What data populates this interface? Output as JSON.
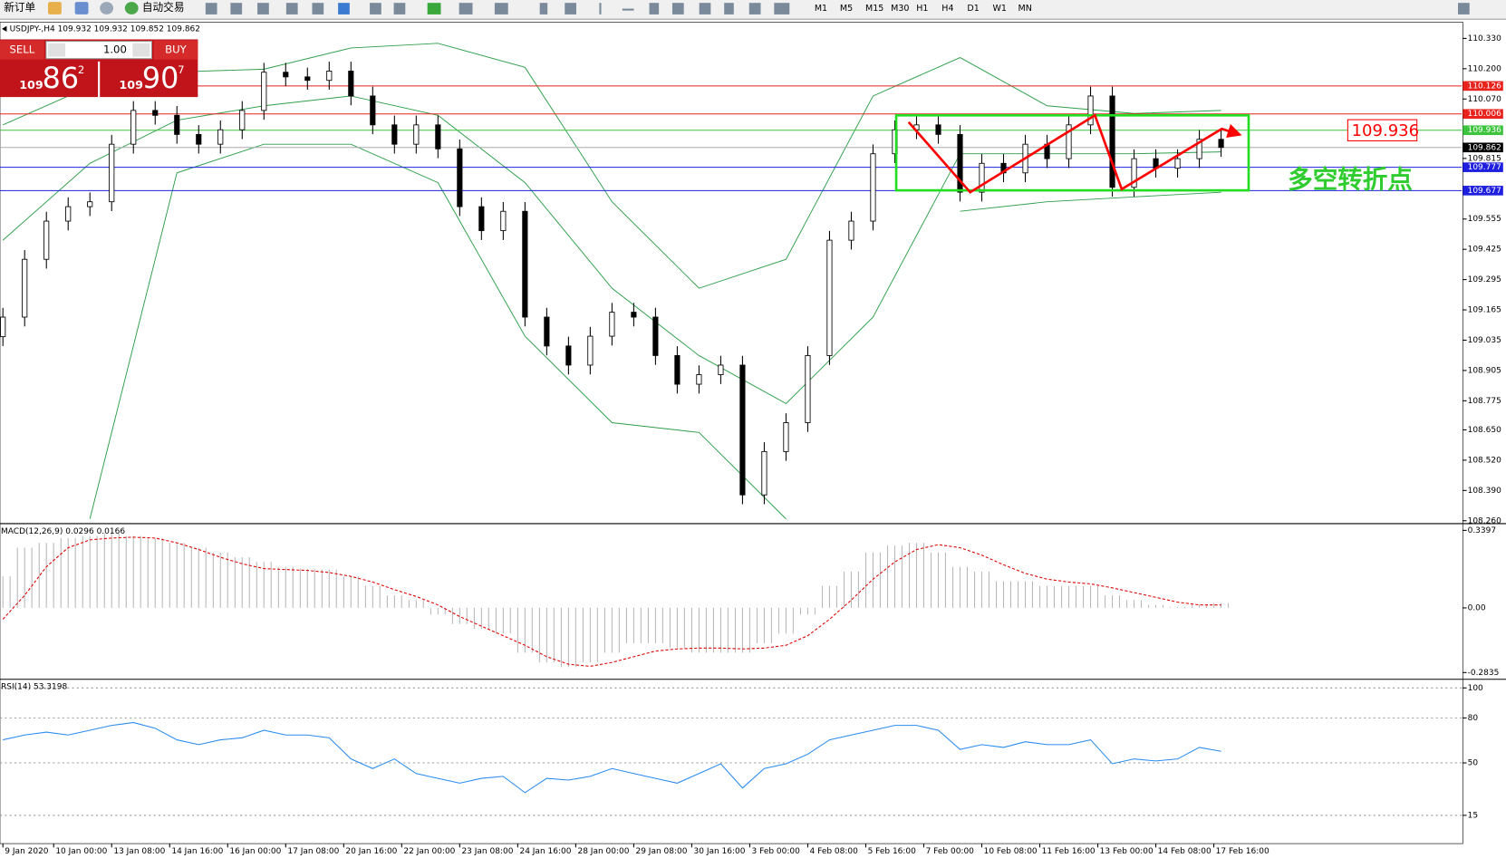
{
  "toolbar": {
    "new_order": "新订单",
    "auto_trading": "自动交易",
    "timeframes": [
      "M1",
      "M5",
      "M15",
      "M30",
      "H1",
      "H4",
      "D1",
      "W1",
      "MN"
    ]
  },
  "trade_panel": {
    "sell_label": "SELL",
    "lot": "1.00",
    "buy_label": "BUY",
    "sell_price": {
      "big": "109",
      "main": "86",
      "small": "2"
    },
    "buy_price": {
      "big": "109",
      "main": "90",
      "small": "7"
    }
  },
  "chart_data": [
    {
      "type": "candlestick",
      "title": "USDJPY-,H4 109.932 109.932 109.852 109.862",
      "xlim": [
        -0.4,
        201.2
      ],
      "ylim": [
        108.26,
        110.33
      ],
      "x": [
        0,
        3,
        6,
        9,
        12,
        15,
        18,
        21,
        24,
        27,
        30,
        33,
        36,
        39,
        42,
        45,
        48,
        51,
        54,
        57,
        60,
        63,
        66,
        69,
        72,
        75,
        78,
        81,
        84,
        87,
        90,
        93,
        96,
        99,
        102,
        105,
        108,
        111,
        114,
        117,
        120,
        123,
        126,
        129,
        132,
        135,
        138,
        141,
        144,
        147,
        150,
        153,
        156,
        159,
        162,
        165,
        168
      ],
      "open": [
        109.05,
        109.134,
        109.382,
        109.546,
        109.608,
        109.629,
        109.876,
        110.021,
        110.0,
        109.918,
        109.876,
        109.938,
        110.021,
        110.185,
        110.165,
        110.15,
        110.19,
        110.083,
        109.959,
        109.876,
        109.959,
        109.856,
        109.608,
        109.505,
        109.588,
        109.134,
        109.01,
        108.928,
        109.052,
        109.155,
        109.134,
        108.969,
        108.846,
        108.887,
        108.928,
        108.371,
        108.557,
        108.681,
        108.969,
        109.464,
        109.546,
        109.835,
        109.938,
        109.959,
        109.918,
        109.67,
        109.794,
        109.753,
        109.876,
        109.814,
        109.959,
        110.083,
        109.691,
        109.814,
        109.773,
        109.814,
        109.897
      ],
      "high": [
        109.174,
        109.422,
        109.586,
        109.648,
        109.669,
        109.916,
        110.061,
        110.061,
        110.04,
        109.958,
        109.978,
        110.061,
        110.225,
        110.225,
        110.205,
        110.23,
        110.23,
        110.123,
        109.999,
        109.999,
        109.999,
        109.896,
        109.648,
        109.628,
        109.628,
        109.174,
        109.05,
        109.092,
        109.195,
        109.195,
        109.174,
        109.009,
        108.927,
        108.968,
        108.968,
        108.597,
        108.721,
        109.009,
        109.504,
        109.586,
        109.875,
        109.978,
        109.999,
        109.999,
        109.958,
        109.834,
        109.834,
        109.916,
        109.916,
        109.999,
        110.123,
        110.123,
        109.854,
        109.854,
        109.854,
        109.937,
        109.937
      ],
      "low": [
        109.01,
        109.094,
        109.342,
        109.506,
        109.568,
        109.589,
        109.836,
        109.96,
        109.878,
        109.836,
        109.836,
        109.898,
        109.981,
        110.125,
        110.11,
        110.11,
        110.043,
        109.919,
        109.836,
        109.836,
        109.816,
        109.568,
        109.465,
        109.465,
        109.094,
        108.97,
        108.888,
        108.888,
        109.012,
        109.094,
        108.929,
        108.806,
        108.806,
        108.847,
        108.331,
        108.331,
        108.517,
        108.641,
        108.929,
        109.424,
        109.506,
        109.795,
        109.898,
        109.878,
        109.63,
        109.63,
        109.713,
        109.713,
        109.774,
        109.774,
        109.919,
        109.651,
        109.651,
        109.733,
        109.733,
        109.774,
        109.822
      ],
      "close": [
        109.134,
        109.382,
        109.546,
        109.608,
        109.629,
        109.876,
        110.021,
        110.0,
        109.918,
        109.876,
        109.938,
        110.021,
        110.185,
        110.165,
        110.15,
        110.19,
        110.083,
        109.959,
        109.876,
        109.959,
        109.856,
        109.608,
        109.505,
        109.588,
        109.134,
        109.01,
        108.928,
        109.052,
        109.155,
        109.134,
        108.969,
        108.846,
        108.887,
        108.928,
        108.371,
        108.557,
        108.681,
        108.969,
        109.464,
        109.546,
        109.835,
        109.938,
        109.959,
        109.918,
        109.67,
        109.794,
        109.753,
        109.876,
        109.814,
        109.959,
        110.083,
        109.691,
        109.814,
        109.773,
        109.814,
        109.897,
        109.862
      ],
      "bands": [
        {
          "color": "#2e9e4a",
          "x": [
            0,
            12,
            24,
            36,
            48,
            60,
            72,
            84,
            96,
            108,
            120,
            132,
            144,
            156,
            168
          ],
          "values": [
            109.959,
            110.124,
            110.186,
            110.198,
            110.289,
            110.309,
            110.206,
            109.629,
            109.258,
            109.382,
            110.083,
            110.248,
            110.041,
            110.008,
            110.021
          ]
        },
        {
          "color": "#2e9e4a",
          "x": [
            0,
            12,
            24,
            36,
            48,
            60,
            72,
            84,
            96,
            108,
            120,
            132,
            144,
            156,
            168
          ],
          "values": [
            109.464,
            109.794,
            109.979,
            110.041,
            110.083,
            110.0,
            109.711,
            109.258,
            108.969,
            108.763,
            109.134,
            109.835,
            109.835,
            109.835,
            109.843
          ]
        },
        {
          "color": "#2e9e4a",
          "x": [
            0,
            12,
            24,
            36,
            48,
            60,
            72,
            84,
            96,
            108,
            120,
            132,
            144,
            156,
            168
          ],
          "values": [
            null,
            108.268,
            109.753,
            109.876,
            109.876,
            109.711,
            109.052,
            108.681,
            108.639,
            108.268,
            null,
            109.588,
            109.629,
            109.65,
            109.67
          ]
        }
      ],
      "yticks": [
        {
          "value": 110.33,
          "label": "110.330"
        },
        {
          "value": 110.2,
          "label": "110.200"
        },
        {
          "value": 110.07,
          "label": "110.070"
        },
        {
          "value": 109.815,
          "label": "109.815"
        },
        {
          "value": 109.555,
          "label": "109.555"
        },
        {
          "value": 109.425,
          "label": "109.425"
        },
        {
          "value": 109.295,
          "label": "109.295"
        },
        {
          "value": 109.165,
          "label": "109.165"
        },
        {
          "value": 109.035,
          "label": "109.035"
        },
        {
          "value": 108.905,
          "label": "108.905"
        },
        {
          "value": 108.775,
          "label": "108.775"
        },
        {
          "value": 108.65,
          "label": "108.650"
        },
        {
          "value": 108.52,
          "label": "108.520"
        },
        {
          "value": 108.39,
          "label": "108.390"
        },
        {
          "value": 108.26,
          "label": "108.260"
        }
      ],
      "levels": [
        {
          "value": 110.126,
          "label": "110.126",
          "color": "#e8231e"
        },
        {
          "value": 110.006,
          "label": "110.006",
          "color": "#e8231e"
        },
        {
          "value": 109.936,
          "label": "109.936",
          "color": "#3cc43c"
        },
        {
          "value": 109.862,
          "label": "109.862",
          "color": "#000000"
        },
        {
          "value": 109.777,
          "label": "109.777",
          "color": "#1f1fe0"
        },
        {
          "value": 109.677,
          "label": "109.677",
          "color": "#1f1fe0"
        }
      ],
      "box": {
        "x0": 123.2,
        "x1": 171.8,
        "y0": 109.678,
        "y1": 110.0,
        "color": "#22dd22"
      },
      "trend": {
        "x": [
          124.9,
          133.4,
          150.6,
          154.3,
          168.1,
          170.5
        ],
        "y": [
          109.971,
          109.67,
          110.0,
          109.683,
          109.942,
          109.918
        ],
        "color": "#ff0000"
      },
      "annotation": {
        "text": "多空转折点",
        "x": 177.2,
        "y": 109.72,
        "color": "#2ecc2e"
      },
      "price_label": {
        "text": "109.936",
        "x": 186,
        "y": 109.936,
        "color": "#ff0000"
      }
    },
    {
      "type": "macd",
      "title": "MACD(12,26,9) 0.0296 0.0166",
      "xlim": [
        -0.4,
        201.2
      ],
      "ylim": [
        -0.2835,
        0.3397
      ],
      "x": [
        0,
        3,
        6,
        9,
        12,
        15,
        18,
        21,
        24,
        27,
        30,
        33,
        36,
        39,
        42,
        45,
        48,
        51,
        54,
        57,
        60,
        63,
        66,
        69,
        72,
        75,
        78,
        81,
        84,
        87,
        90,
        93,
        96,
        99,
        102,
        105,
        108,
        111,
        114,
        117,
        120,
        123,
        126,
        129,
        132,
        135,
        138,
        141,
        144,
        147,
        150,
        153,
        156,
        159,
        162,
        165,
        168
      ],
      "histogram": {
        "color": "#b8b8b8",
        "values": [
          0.138,
          0.264,
          0.285,
          0.306,
          0.315,
          0.327,
          0.315,
          0.306,
          0.285,
          0.264,
          0.243,
          0.222,
          0.201,
          0.18,
          0.172,
          0.168,
          0.138,
          0.096,
          0.055,
          0.034,
          -0.029,
          -0.071,
          -0.092,
          -0.113,
          -0.197,
          -0.239,
          -0.26,
          -0.239,
          -0.197,
          -0.155,
          -0.155,
          -0.176,
          -0.197,
          -0.197,
          -0.197,
          -0.155,
          -0.113,
          -0.029,
          0.096,
          0.159,
          0.243,
          0.273,
          0.285,
          0.243,
          0.18,
          0.159,
          0.117,
          0.117,
          0.096,
          0.096,
          0.096,
          0.055,
          0.034,
          0.013,
          0.004,
          0.013,
          0.021
        ]
      },
      "signal": {
        "color": "#e00000",
        "values": [
          -0.05,
          0.055,
          0.18,
          0.264,
          0.298,
          0.306,
          0.31,
          0.306,
          0.285,
          0.256,
          0.222,
          0.193,
          0.172,
          0.168,
          0.164,
          0.155,
          0.138,
          0.113,
          0.08,
          0.05,
          0.013,
          -0.038,
          -0.08,
          -0.122,
          -0.164,
          -0.214,
          -0.247,
          -0.256,
          -0.239,
          -0.214,
          -0.189,
          -0.18,
          -0.176,
          -0.176,
          -0.18,
          -0.176,
          -0.164,
          -0.122,
          -0.05,
          0.034,
          0.126,
          0.201,
          0.256,
          0.277,
          0.264,
          0.231,
          0.189,
          0.151,
          0.126,
          0.113,
          0.105,
          0.088,
          0.067,
          0.046,
          0.025,
          0.013,
          0.013
        ]
      },
      "yticks": [
        0.3397,
        {
          "value": 0,
          "label": "0.00"
        },
        -0.2835
      ]
    },
    {
      "type": "line",
      "title": "RSI(14) 53.3198",
      "xlim": [
        -0.4,
        201.2
      ],
      "ylim": [
        0,
        100
      ],
      "color": "#2a8cf0",
      "grid": true,
      "x": [
        0,
        3,
        6,
        9,
        12,
        15,
        18,
        21,
        24,
        27,
        30,
        33,
        36,
        39,
        42,
        45,
        48,
        51,
        54,
        57,
        60,
        63,
        66,
        69,
        72,
        75,
        78,
        81,
        84,
        87,
        90,
        93,
        96,
        99,
        102,
        105,
        108,
        111,
        114,
        117,
        120,
        123,
        126,
        129,
        132,
        135,
        138,
        141,
        144,
        147,
        150,
        153,
        156,
        159,
        162,
        165,
        168
      ],
      "values": [
        65.4,
        68.6,
        70.5,
        68.6,
        71.8,
        75.0,
        76.9,
        73.1,
        65.4,
        62.2,
        65.4,
        66.7,
        71.8,
        68.6,
        68.6,
        66.7,
        52.6,
        46.2,
        52.6,
        42.9,
        39.7,
        36.5,
        39.7,
        41.0,
        30.1,
        39.7,
        38.5,
        41.0,
        46.2,
        42.9,
        39.7,
        36.5,
        42.9,
        49.4,
        33.3,
        46.2,
        49.4,
        55.8,
        65.4,
        68.6,
        71.8,
        75.0,
        75.0,
        71.8,
        59.0,
        62.2,
        60.3,
        64.1,
        62.2,
        62.2,
        65.4,
        49.4,
        52.6,
        51.3,
        52.6,
        60.3,
        57.7
      ],
      "yticks": [
        100,
        80,
        50,
        15
      ],
      "xticks": [
        {
          "value": 0,
          "label": "9 Jan 2020"
        },
        {
          "value": 7,
          "label": "10 Jan 00:00"
        },
        {
          "value": 15,
          "label": "13 Jan 08:00"
        },
        {
          "value": 23,
          "label": "14 Jan 16:00"
        },
        {
          "value": 31,
          "label": "16 Jan 00:00"
        },
        {
          "value": 39,
          "label": "17 Jan 08:00"
        },
        {
          "value": 47,
          "label": "20 Jan 16:00"
        },
        {
          "value": 55,
          "label": "22 Jan 00:00"
        },
        {
          "value": 63,
          "label": "23 Jan 08:00"
        },
        {
          "value": 71,
          "label": "24 Jan 16:00"
        },
        {
          "value": 79,
          "label": "28 Jan 00:00"
        },
        {
          "value": 87,
          "label": "29 Jan 08:00"
        },
        {
          "value": 95,
          "label": "30 Jan 16:00"
        },
        {
          "value": 103,
          "label": "3 Feb 00:00"
        },
        {
          "value": 111,
          "label": "4 Feb 08:00"
        },
        {
          "value": 119,
          "label": "5 Feb 16:00"
        },
        {
          "value": 127,
          "label": "7 Feb 00:00"
        },
        {
          "value": 135,
          "label": "10 Feb 08:00"
        },
        {
          "value": 143,
          "label": "11 Feb 16:00"
        },
        {
          "value": 151,
          "label": "13 Feb 00:00"
        },
        {
          "value": 159,
          "label": "14 Feb 08:00"
        },
        {
          "value": 167,
          "label": "17 Feb 16:00"
        }
      ]
    }
  ]
}
